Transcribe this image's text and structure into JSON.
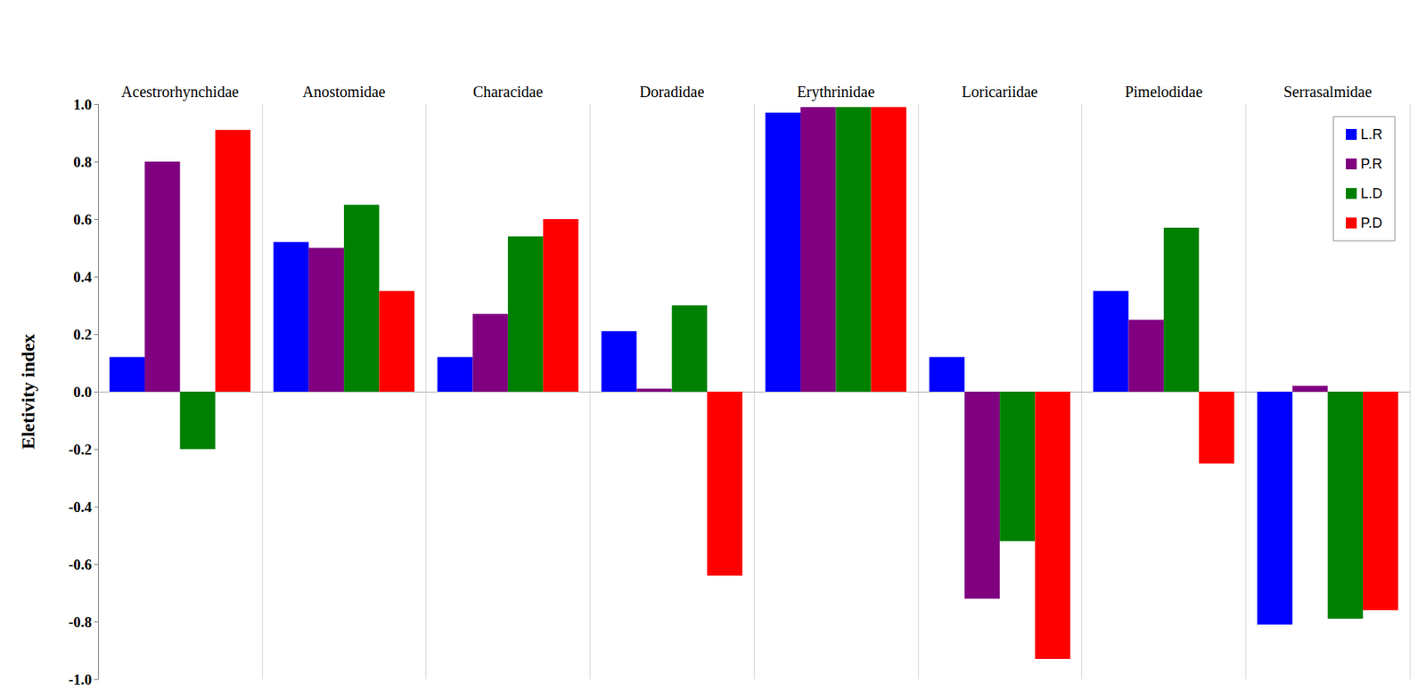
{
  "chart_data": {
    "type": "bar",
    "y_label": "Eletivity index",
    "categories": [
      "Acestrorhynchidae",
      "Anostomidae",
      "Characidae",
      "Doradidae",
      "Erythrinidae",
      "Loricariidae",
      "Pimelodidae",
      "Serrasalmidae"
    ],
    "series": [
      {
        "name": "L.R",
        "color": "#0000ff",
        "values": [
          0.12,
          0.52,
          0.12,
          0.21,
          0.97,
          0.12,
          0.35,
          -0.81
        ]
      },
      {
        "name": "P.R",
        "color": "#800080",
        "values": [
          0.8,
          0.5,
          0.27,
          0.01,
          0.99,
          -0.72,
          0.25,
          0.02
        ]
      },
      {
        "name": "L.D",
        "color": "#008000",
        "values": [
          -0.2,
          0.65,
          0.54,
          0.3,
          0.99,
          -0.52,
          0.57,
          -0.79
        ]
      },
      {
        "name": "P.D",
        "color": "#ff0000",
        "values": [
          0.91,
          0.35,
          0.6,
          -0.64,
          0.99,
          -0.93,
          -0.25,
          -0.76
        ]
      }
    ],
    "ylim": [
      -1,
      1
    ],
    "yticks": [
      {
        "value": -1,
        "label": "-1.0"
      },
      -0.8,
      -0.6,
      -0.4,
      -0.2,
      {
        "value": 0,
        "label": "0.0"
      },
      0.2,
      0.4,
      0.6,
      0.8,
      {
        "value": 1,
        "label": "1.0"
      }
    ],
    "legend": "top-right",
    "grid": true
  }
}
